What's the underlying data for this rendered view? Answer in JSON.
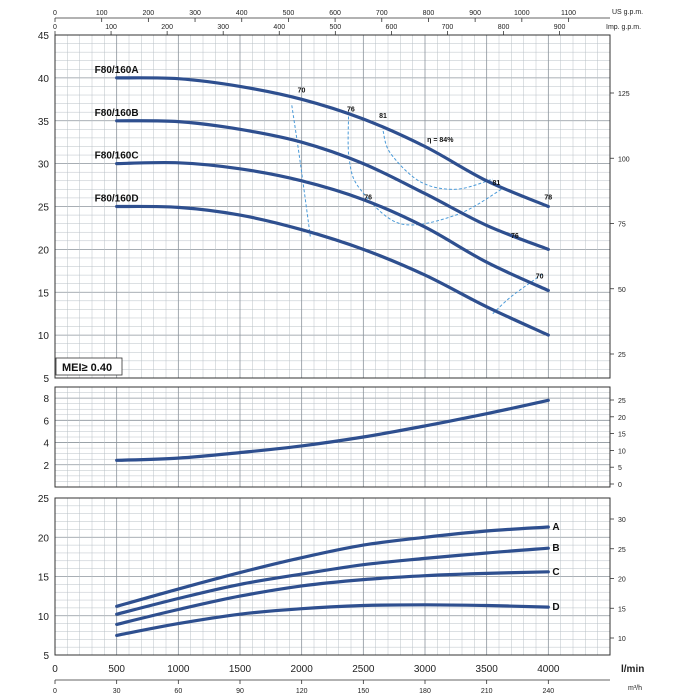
{
  "top_axes": {
    "us_gpm": {
      "label": "US g.p.m.",
      "ticks": [
        0,
        100,
        200,
        300,
        400,
        500,
        600,
        700,
        800,
        900,
        1000,
        1100
      ]
    },
    "imp_gpm": {
      "label": "Imp. g.p.m.",
      "ticks": [
        0,
        100,
        200,
        300,
        400,
        500,
        600,
        700,
        800,
        900
      ]
    }
  },
  "bottom_axes": {
    "l_min": {
      "label": "l/min",
      "ticks": [
        0,
        500,
        1000,
        1500,
        2000,
        2500,
        3000,
        3500,
        4000
      ]
    },
    "m3h": {
      "label": "m³/h",
      "ticks": [
        0,
        30,
        60,
        90,
        120,
        150,
        180,
        210,
        240
      ]
    }
  },
  "mei_label": "MEI≥ 0.40",
  "chart_data": [
    {
      "type": "line",
      "panel": "head",
      "x_unit": "l/min",
      "y_left_unit": "m",
      "y_right_unit": "ft",
      "ylim": [
        5,
        45
      ],
      "y_ticks": [
        5,
        10,
        15,
        20,
        25,
        30,
        35,
        40,
        45
      ],
      "y_right_ticks": [
        25,
        50,
        75,
        100,
        125
      ],
      "grid": true,
      "series": [
        {
          "name": "F80/160A",
          "x": [
            500,
            1000,
            1500,
            2000,
            2500,
            3000,
            3500,
            4000
          ],
          "y": [
            40.0,
            39.9,
            39.0,
            37.5,
            35.2,
            32.0,
            28.0,
            25.0
          ]
        },
        {
          "name": "F80/160B",
          "x": [
            500,
            1000,
            1500,
            2000,
            2500,
            3000,
            3500,
            4000
          ],
          "y": [
            35.0,
            34.9,
            34.0,
            32.5,
            30.0,
            26.5,
            22.8,
            20.0
          ]
        },
        {
          "name": "F80/160C",
          "x": [
            500,
            1000,
            1500,
            2000,
            2500,
            3000,
            3500,
            4000
          ],
          "y": [
            30.0,
            30.1,
            29.4,
            28.0,
            25.8,
            22.6,
            18.5,
            15.2
          ]
        },
        {
          "name": "F80/160D",
          "x": [
            500,
            1000,
            1500,
            2000,
            2500,
            3000,
            3500,
            4000
          ],
          "y": [
            25.0,
            24.9,
            24.0,
            22.3,
            20.0,
            17.0,
            13.3,
            10.0
          ]
        }
      ],
      "efficiency_labels": [
        {
          "text": "70",
          "x": 2000,
          "y": 38.3
        },
        {
          "text": "76",
          "x": 2400,
          "y": 36.1
        },
        {
          "text": "81",
          "x": 2660,
          "y": 35.3
        },
        {
          "text": "η = 84%",
          "x": 3050,
          "y": 32.5
        },
        {
          "text": "81",
          "x": 3580,
          "y": 27.5
        },
        {
          "text": "78",
          "x": 4000,
          "y": 25.8
        },
        {
          "text": "76",
          "x": 2540,
          "y": 25.8
        },
        {
          "text": "76",
          "x": 3730,
          "y": 21.3
        },
        {
          "text": "70",
          "x": 3930,
          "y": 16.6
        }
      ],
      "efficiency_curves": [
        {
          "x": [
            1920,
            1990,
            2070
          ],
          "y": [
            36.8,
            30.0,
            21.5
          ]
        },
        {
          "x": [
            2380,
            2385,
            2475,
            2800,
            3250,
            3620
          ],
          "y": [
            35.5,
            30.5,
            27.0,
            23.0,
            24.0,
            27.0
          ]
        },
        {
          "x": [
            2660,
            2720,
            2960,
            3250,
            3550
          ],
          "y": [
            33.8,
            31.2,
            27.9,
            27.0,
            28.2
          ]
        },
        {
          "x": [
            3550,
            3700,
            3960
          ],
          "y": [
            12.5,
            14.5,
            17.2
          ]
        }
      ]
    },
    {
      "type": "line",
      "panel": "npsh",
      "x_unit": "l/min",
      "y_left_unit": "m",
      "y_right_unit": "ft",
      "ylim": [
        0,
        9
      ],
      "y_ticks": [
        2,
        4,
        6,
        8
      ],
      "y_right_ticks": [
        0,
        5,
        10,
        15,
        20,
        25
      ],
      "grid": true,
      "series": [
        {
          "x": [
            500,
            1000,
            1500,
            2000,
            2500,
            3000,
            3500,
            4000
          ],
          "y": [
            2.4,
            2.6,
            3.1,
            3.7,
            4.5,
            5.5,
            6.6,
            7.8
          ]
        }
      ]
    },
    {
      "type": "line",
      "panel": "power",
      "x_unit": "l/min",
      "y_left_unit": "kW",
      "y_right_unit": "HP",
      "ylim": [
        5,
        25
      ],
      "y_ticks": [
        5,
        10,
        15,
        20,
        25
      ],
      "y_right_ticks": [
        10,
        15,
        20,
        25,
        30
      ],
      "grid": true,
      "series": [
        {
          "name": "A",
          "x": [
            500,
            1000,
            1500,
            2000,
            2500,
            3000,
            3500,
            4000
          ],
          "y": [
            11.2,
            13.4,
            15.5,
            17.4,
            19.0,
            20.0,
            20.8,
            21.3
          ]
        },
        {
          "name": "B",
          "x": [
            500,
            1000,
            1500,
            2000,
            2500,
            3000,
            3500,
            4000
          ],
          "y": [
            10.2,
            12.2,
            14.0,
            15.3,
            16.5,
            17.3,
            18.0,
            18.6
          ]
        },
        {
          "name": "C",
          "x": [
            500,
            1000,
            1500,
            2000,
            2500,
            3000,
            3500,
            4000
          ],
          "y": [
            8.9,
            10.8,
            12.5,
            13.8,
            14.6,
            15.1,
            15.4,
            15.6
          ]
        },
        {
          "name": "D",
          "x": [
            500,
            1000,
            1500,
            2000,
            2500,
            3000,
            3500,
            4000
          ],
          "y": [
            7.5,
            9.0,
            10.2,
            10.9,
            11.3,
            11.4,
            11.3,
            11.1
          ]
        }
      ]
    }
  ]
}
